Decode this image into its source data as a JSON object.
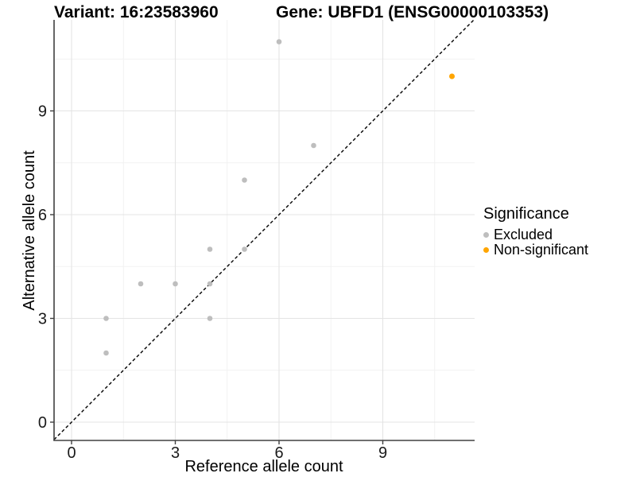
{
  "chart_data": {
    "type": "scatter",
    "title_left": "Variant: 16:23583960",
    "title_right": "Gene: UBFD1 (ENSG00000103353)",
    "xlabel": "Reference allele count",
    "ylabel": "Alternative allele count",
    "x_ticks": [
      0,
      3,
      6,
      9
    ],
    "y_ticks": [
      0,
      3,
      6,
      9
    ],
    "x_minor_ticks": [
      1.5,
      4.5,
      7.5,
      10.5
    ],
    "y_minor_ticks": [
      1.5,
      4.5,
      7.5,
      10.5
    ],
    "xlim": [
      -0.5,
      11.7
    ],
    "ylim": [
      -0.55,
      11.65
    ],
    "grid": "major+minor",
    "legend_position": "right",
    "reference_line": {
      "type": "identity y=x",
      "style": "dashed",
      "color": "#000000"
    },
    "series": [
      {
        "name": "Excluded",
        "color": "#BEBEBE",
        "points": [
          [
            1,
            2
          ],
          [
            1,
            3
          ],
          [
            2,
            4
          ],
          [
            3,
            4
          ],
          [
            4,
            3
          ],
          [
            4,
            4
          ],
          [
            4,
            5
          ],
          [
            5,
            5
          ],
          [
            5,
            7
          ],
          [
            6,
            11
          ],
          [
            7,
            8
          ]
        ]
      },
      {
        "name": "Non-significant",
        "color": "#FFA500",
        "points": [
          [
            11,
            10
          ]
        ]
      }
    ]
  },
  "legend": {
    "title": "Significance",
    "items": [
      {
        "label": "Excluded",
        "color": "#BEBEBE"
      },
      {
        "label": "Non-significant",
        "color": "#FFA500"
      }
    ]
  },
  "colors": {
    "grid_major": "#E4E4E4",
    "grid_minor": "#F2F2F2",
    "axis_line": "#404040",
    "tick_text": "#1a1a1a"
  }
}
